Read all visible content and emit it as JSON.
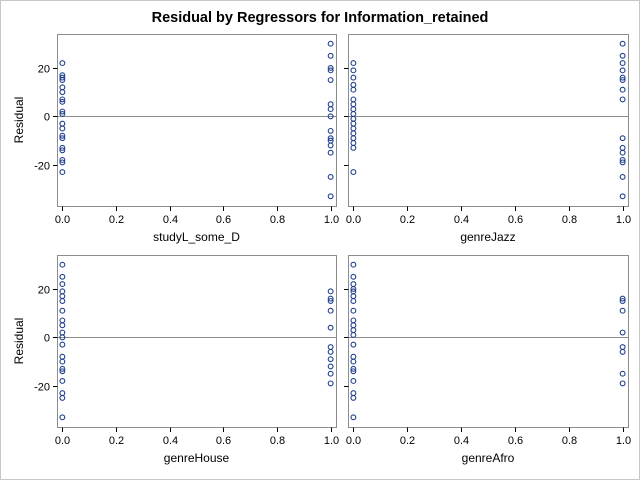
{
  "chart_data": {
    "type": "scatter",
    "title": "Residual by Regressors for Information_retained",
    "ylabel": "Residual",
    "xlim": [
      -0.02,
      1.02
    ],
    "ylim": [
      -37,
      34
    ],
    "x_ticks": [
      "0.0",
      "0.2",
      "0.4",
      "0.6",
      "0.8",
      "1.0"
    ],
    "y_ticks": [
      "20",
      "0",
      "-20"
    ],
    "x_tick_values": [
      0,
      0.2,
      0.4,
      0.6,
      0.8,
      1.0
    ],
    "y_tick_values": [
      20,
      0,
      -20
    ],
    "reference_line": 0,
    "grid": false,
    "colors": {
      "marker": "#1f3f8f",
      "refline": "#8c8c8c",
      "frame": "#8c8c8c"
    },
    "panels": [
      {
        "xlabel": "studyL_some_D",
        "points": [
          {
            "x": 0,
            "y": 22
          },
          {
            "x": 0,
            "y": 17
          },
          {
            "x": 0,
            "y": 16
          },
          {
            "x": 0,
            "y": 15
          },
          {
            "x": 0,
            "y": 12
          },
          {
            "x": 0,
            "y": 10
          },
          {
            "x": 0,
            "y": 7
          },
          {
            "x": 0,
            "y": 6
          },
          {
            "x": 0,
            "y": 2
          },
          {
            "x": 0,
            "y": 1
          },
          {
            "x": 0,
            "y": -3
          },
          {
            "x": 0,
            "y": -5
          },
          {
            "x": 0,
            "y": -8
          },
          {
            "x": 0,
            "y": -9
          },
          {
            "x": 0,
            "y": -13
          },
          {
            "x": 0,
            "y": -14
          },
          {
            "x": 0,
            "y": -18
          },
          {
            "x": 0,
            "y": -19
          },
          {
            "x": 0,
            "y": -23
          },
          {
            "x": 1,
            "y": 30
          },
          {
            "x": 1,
            "y": 25
          },
          {
            "x": 1,
            "y": 20
          },
          {
            "x": 1,
            "y": 19
          },
          {
            "x": 1,
            "y": 15
          },
          {
            "x": 1,
            "y": 5
          },
          {
            "x": 1,
            "y": 3
          },
          {
            "x": 1,
            "y": 0
          },
          {
            "x": 1,
            "y": -6
          },
          {
            "x": 1,
            "y": -9
          },
          {
            "x": 1,
            "y": -10
          },
          {
            "x": 1,
            "y": -12
          },
          {
            "x": 1,
            "y": -15
          },
          {
            "x": 1,
            "y": -25
          },
          {
            "x": 1,
            "y": -33
          }
        ]
      },
      {
        "xlabel": "genreJazz",
        "points": [
          {
            "x": 0,
            "y": 22
          },
          {
            "x": 0,
            "y": 19
          },
          {
            "x": 0,
            "y": 16
          },
          {
            "x": 0,
            "y": 13
          },
          {
            "x": 0,
            "y": 11
          },
          {
            "x": 0,
            "y": 7
          },
          {
            "x": 0,
            "y": 5
          },
          {
            "x": 0,
            "y": 3
          },
          {
            "x": 0,
            "y": 1
          },
          {
            "x": 0,
            "y": -1
          },
          {
            "x": 0,
            "y": -3
          },
          {
            "x": 0,
            "y": -5
          },
          {
            "x": 0,
            "y": -7
          },
          {
            "x": 0,
            "y": -9
          },
          {
            "x": 0,
            "y": -11
          },
          {
            "x": 0,
            "y": -13
          },
          {
            "x": 0,
            "y": -23
          },
          {
            "x": 1,
            "y": 30
          },
          {
            "x": 1,
            "y": 25
          },
          {
            "x": 1,
            "y": 22
          },
          {
            "x": 1,
            "y": 19
          },
          {
            "x": 1,
            "y": 16
          },
          {
            "x": 1,
            "y": 15
          },
          {
            "x": 1,
            "y": 11
          },
          {
            "x": 1,
            "y": 7
          },
          {
            "x": 1,
            "y": -9
          },
          {
            "x": 1,
            "y": -13
          },
          {
            "x": 1,
            "y": -15
          },
          {
            "x": 1,
            "y": -18
          },
          {
            "x": 1,
            "y": -19
          },
          {
            "x": 1,
            "y": -25
          },
          {
            "x": 1,
            "y": -33
          }
        ]
      },
      {
        "xlabel": "genreHouse",
        "points": [
          {
            "x": 0,
            "y": 30
          },
          {
            "x": 0,
            "y": 25
          },
          {
            "x": 0,
            "y": 22
          },
          {
            "x": 0,
            "y": 19
          },
          {
            "x": 0,
            "y": 17
          },
          {
            "x": 0,
            "y": 15
          },
          {
            "x": 0,
            "y": 11
          },
          {
            "x": 0,
            "y": 7
          },
          {
            "x": 0,
            "y": 5
          },
          {
            "x": 0,
            "y": 2
          },
          {
            "x": 0,
            "y": 0
          },
          {
            "x": 0,
            "y": -3
          },
          {
            "x": 0,
            "y": -8
          },
          {
            "x": 0,
            "y": -10
          },
          {
            "x": 0,
            "y": -13
          },
          {
            "x": 0,
            "y": -14
          },
          {
            "x": 0,
            "y": -18
          },
          {
            "x": 0,
            "y": -23
          },
          {
            "x": 0,
            "y": -25
          },
          {
            "x": 0,
            "y": -33
          },
          {
            "x": 1,
            "y": 19
          },
          {
            "x": 1,
            "y": 16
          },
          {
            "x": 1,
            "y": 15
          },
          {
            "x": 1,
            "y": 11
          },
          {
            "x": 1,
            "y": 4
          },
          {
            "x": 1,
            "y": -4
          },
          {
            "x": 1,
            "y": -6
          },
          {
            "x": 1,
            "y": -9
          },
          {
            "x": 1,
            "y": -12
          },
          {
            "x": 1,
            "y": -15
          },
          {
            "x": 1,
            "y": -19
          }
        ]
      },
      {
        "xlabel": "genreAfro",
        "points": [
          {
            "x": 0,
            "y": 30
          },
          {
            "x": 0,
            "y": 25
          },
          {
            "x": 0,
            "y": 22
          },
          {
            "x": 0,
            "y": 20
          },
          {
            "x": 0,
            "y": 19
          },
          {
            "x": 0,
            "y": 17
          },
          {
            "x": 0,
            "y": 15
          },
          {
            "x": 0,
            "y": 11
          },
          {
            "x": 0,
            "y": 7
          },
          {
            "x": 0,
            "y": 5
          },
          {
            "x": 0,
            "y": 3
          },
          {
            "x": 0,
            "y": 1
          },
          {
            "x": 0,
            "y": -3
          },
          {
            "x": 0,
            "y": -8
          },
          {
            "x": 0,
            "y": -10
          },
          {
            "x": 0,
            "y": -13
          },
          {
            "x": 0,
            "y": -14
          },
          {
            "x": 0,
            "y": -18
          },
          {
            "x": 0,
            "y": -23
          },
          {
            "x": 0,
            "y": -25
          },
          {
            "x": 0,
            "y": -33
          },
          {
            "x": 1,
            "y": 16
          },
          {
            "x": 1,
            "y": 15
          },
          {
            "x": 1,
            "y": 11
          },
          {
            "x": 1,
            "y": 2
          },
          {
            "x": 1,
            "y": -4
          },
          {
            "x": 1,
            "y": -6
          },
          {
            "x": 1,
            "y": -15
          },
          {
            "x": 1,
            "y": -19
          }
        ]
      }
    ]
  }
}
